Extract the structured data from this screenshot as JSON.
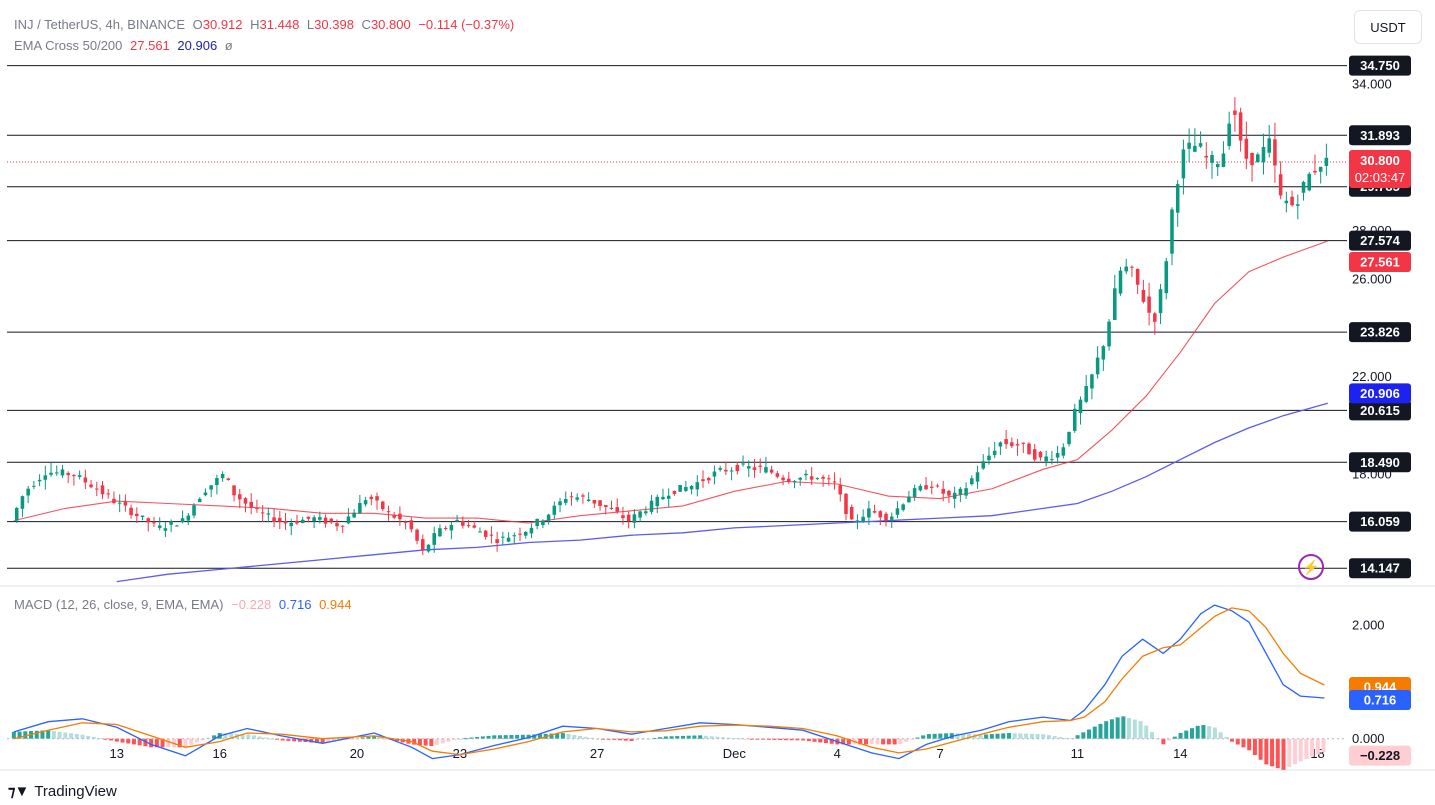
{
  "header": {
    "symbol": "INJ / TetherUS, 4h, BINANCE",
    "o_label": "O",
    "o": "30.912",
    "h_label": "H",
    "h": "31.448",
    "l_label": "L",
    "l": "30.398",
    "c_label": "C",
    "c": "30.800",
    "change": "−0.114 (−0.37%)",
    "ema_label": "EMA Cross 50/200",
    "ema50": "27.561",
    "ema200": "20.906",
    "ema_icon": "ø"
  },
  "macd_header": {
    "label": "MACD (12, 26, close, 9, EMA, EMA)",
    "hist": "−0.228",
    "macd": "0.716",
    "signal": "0.944"
  },
  "unit_button": "USDT",
  "brand": "TradingView",
  "icons": {
    "brand": "tradingview-logo-icon",
    "alert": "lightning-icon"
  },
  "colors": {
    "up": "#089981",
    "down": "#f23645",
    "ema50": "#f23645",
    "ema200": "#5b5bf5",
    "macd": "#2962ff",
    "signal": "#f57c00",
    "level": "#131722"
  },
  "chart_data": [
    {
      "type": "candlestick",
      "title": "INJ / TetherUS, 4h, BINANCE",
      "x_ticks": [
        {
          "day": 13,
          "label": "13"
        },
        {
          "day": 16,
          "label": "16"
        },
        {
          "day": 20,
          "label": "20"
        },
        {
          "day": 23,
          "label": "23"
        },
        {
          "day": 27,
          "label": "27"
        },
        {
          "day": 31,
          "label": "Dec"
        },
        {
          "day": 34,
          "label": "4"
        },
        {
          "day": 37,
          "label": "7"
        },
        {
          "day": 41,
          "label": "11"
        },
        {
          "day": 44,
          "label": "14"
        },
        {
          "day": 48,
          "label": "18"
        }
      ],
      "y_ticks": [
        {
          "v": 34.0,
          "label": "34.000"
        },
        {
          "v": 28.0,
          "label": "28.000"
        },
        {
          "v": 26.0,
          "label": "26.000"
        },
        {
          "v": 22.0,
          "label": "22.000"
        },
        {
          "v": 18.0,
          "label": "18.000"
        }
      ],
      "ylim": [
        13.5,
        35.8
      ],
      "horizontal_levels": [
        {
          "v": 34.75,
          "label": "34.750"
        },
        {
          "v": 31.893,
          "label": "31.893"
        },
        {
          "v": 29.785,
          "label": "29.785"
        },
        {
          "v": 27.574,
          "label": "27.574"
        },
        {
          "v": 23.826,
          "label": "23.826"
        },
        {
          "v": 20.615,
          "label": "20.615"
        },
        {
          "v": 18.49,
          "label": "18.490"
        },
        {
          "v": 16.059,
          "label": "16.059"
        },
        {
          "v": 14.147,
          "label": "14.147"
        }
      ],
      "last_price": {
        "v": 30.8,
        "label": "30.800",
        "countdown": "02:03:47"
      },
      "ema50_last": {
        "v": 27.561,
        "label": "27.561"
      },
      "ema200_last": {
        "v": 20.906,
        "label": "20.906"
      },
      "price_path": [
        [
          10.0,
          16.1
        ],
        [
          10.4,
          17.3
        ],
        [
          11.0,
          18.1
        ],
        [
          11.8,
          18.0
        ],
        [
          12.4,
          17.5
        ],
        [
          13.0,
          16.9
        ],
        [
          13.8,
          16.2
        ],
        [
          14.3,
          15.8
        ],
        [
          15.0,
          16.1
        ],
        [
          15.6,
          17.3
        ],
        [
          16.2,
          18.0
        ],
        [
          16.5,
          17.2
        ],
        [
          17.2,
          16.4
        ],
        [
          18.0,
          16.0
        ],
        [
          18.8,
          16.2
        ],
        [
          19.6,
          15.9
        ],
        [
          20.4,
          17.1
        ],
        [
          21.0,
          16.4
        ],
        [
          21.6,
          15.9
        ],
        [
          22.0,
          14.8
        ],
        [
          22.4,
          15.6
        ],
        [
          23.0,
          16.1
        ],
        [
          23.6,
          15.7
        ],
        [
          24.2,
          15.3
        ],
        [
          25.0,
          15.7
        ],
        [
          25.6,
          16.3
        ],
        [
          26.2,
          17.1
        ],
        [
          26.8,
          17.0
        ],
        [
          27.4,
          16.6
        ],
        [
          28.0,
          16.1
        ],
        [
          28.6,
          16.7
        ],
        [
          29.2,
          17.3
        ],
        [
          29.8,
          17.5
        ],
        [
          30.6,
          18.1
        ],
        [
          31.2,
          18.3
        ],
        [
          32.0,
          18.2
        ],
        [
          32.6,
          17.8
        ],
        [
          33.4,
          17.9
        ],
        [
          34.0,
          17.6
        ],
        [
          34.5,
          16.0
        ],
        [
          35.0,
          16.5
        ],
        [
          35.6,
          16.2
        ],
        [
          36.2,
          17.2
        ],
        [
          36.8,
          17.6
        ],
        [
          37.4,
          17.0
        ],
        [
          37.8,
          17.4
        ],
        [
          38.2,
          18.2
        ],
        [
          38.8,
          19.3
        ],
        [
          39.4,
          19.2
        ],
        [
          40.0,
          18.6
        ],
        [
          40.6,
          18.9
        ],
        [
          41.0,
          20.5
        ],
        [
          41.4,
          21.6
        ],
        [
          41.9,
          23.6
        ],
        [
          42.3,
          26.3
        ],
        [
          42.6,
          26.5
        ],
        [
          43.0,
          25.2
        ],
        [
          43.3,
          24.2
        ],
        [
          43.6,
          26.0
        ],
        [
          43.9,
          29.5
        ],
        [
          44.2,
          31.3
        ],
        [
          44.6,
          31.5
        ],
        [
          44.9,
          30.8
        ],
        [
          45.3,
          30.9
        ],
        [
          45.6,
          33.4
        ],
        [
          45.9,
          31.0
        ],
        [
          46.3,
          30.9
        ],
        [
          46.7,
          31.6
        ],
        [
          47.0,
          29.3
        ],
        [
          47.4,
          29.0
        ],
        [
          47.8,
          30.2
        ],
        [
          48.2,
          30.8
        ]
      ],
      "ema50_path": [
        [
          10.0,
          16.1
        ],
        [
          11.5,
          16.6
        ],
        [
          13.0,
          16.9
        ],
        [
          14.5,
          16.8
        ],
        [
          16.0,
          16.7
        ],
        [
          17.5,
          16.6
        ],
        [
          19.0,
          16.4
        ],
        [
          20.5,
          16.4
        ],
        [
          22.0,
          16.2
        ],
        [
          23.5,
          16.2
        ],
        [
          25.0,
          16.0
        ],
        [
          26.5,
          16.3
        ],
        [
          28.0,
          16.5
        ],
        [
          29.5,
          16.7
        ],
        [
          31.0,
          17.3
        ],
        [
          32.5,
          17.7
        ],
        [
          34.0,
          17.6
        ],
        [
          35.5,
          17.1
        ],
        [
          37.0,
          17.0
        ],
        [
          38.5,
          17.4
        ],
        [
          40.0,
          18.2
        ],
        [
          41.0,
          18.6
        ],
        [
          42.0,
          19.8
        ],
        [
          43.0,
          21.2
        ],
        [
          44.0,
          23.0
        ],
        [
          45.0,
          25.0
        ],
        [
          46.0,
          26.3
        ],
        [
          47.0,
          26.9
        ],
        [
          48.3,
          27.561
        ]
      ],
      "ema200_path": [
        [
          13.0,
          13.6
        ],
        [
          14.5,
          13.9
        ],
        [
          16.0,
          14.1
        ],
        [
          17.5,
          14.3
        ],
        [
          19.0,
          14.5
        ],
        [
          20.5,
          14.7
        ],
        [
          22.0,
          14.9
        ],
        [
          23.5,
          15.0
        ],
        [
          25.0,
          15.2
        ],
        [
          26.5,
          15.3
        ],
        [
          28.0,
          15.5
        ],
        [
          29.5,
          15.6
        ],
        [
          31.0,
          15.8
        ],
        [
          32.5,
          15.9
        ],
        [
          34.0,
          16.0
        ],
        [
          35.5,
          16.1
        ],
        [
          37.0,
          16.2
        ],
        [
          38.5,
          16.3
        ],
        [
          40.0,
          16.6
        ],
        [
          41.0,
          16.8
        ],
        [
          42.0,
          17.3
        ],
        [
          43.0,
          17.9
        ],
        [
          44.0,
          18.6
        ],
        [
          45.0,
          19.3
        ],
        [
          46.0,
          19.9
        ],
        [
          47.0,
          20.4
        ],
        [
          48.3,
          20.906
        ]
      ]
    },
    {
      "type": "macd",
      "title": "MACD (12, 26, close, 9, EMA, EMA)",
      "y_ticks": [
        {
          "v": 2.0,
          "label": "2.000"
        },
        {
          "v": 0.0,
          "label": "0.000"
        }
      ],
      "ylim": [
        -0.55,
        2.65
      ],
      "macd_last": {
        "v": 0.716,
        "label": "0.716"
      },
      "signal_last": {
        "v": 0.944,
        "label": "0.944"
      },
      "hist_last": {
        "v": -0.228,
        "label": "−0.228"
      },
      "macd_path": [
        [
          10.0,
          0.12
        ],
        [
          11.0,
          0.3
        ],
        [
          12.0,
          0.35
        ],
        [
          13.0,
          0.2
        ],
        [
          14.0,
          -0.1
        ],
        [
          15.0,
          -0.3
        ],
        [
          16.0,
          0.05
        ],
        [
          16.8,
          0.18
        ],
        [
          17.8,
          0.05
        ],
        [
          19.0,
          -0.08
        ],
        [
          20.5,
          0.1
        ],
        [
          21.6,
          -0.15
        ],
        [
          22.2,
          -0.35
        ],
        [
          23.0,
          -0.28
        ],
        [
          24.0,
          -0.12
        ],
        [
          25.0,
          0.02
        ],
        [
          26.0,
          0.22
        ],
        [
          27.0,
          0.18
        ],
        [
          28.0,
          0.08
        ],
        [
          29.0,
          0.18
        ],
        [
          30.0,
          0.28
        ],
        [
          31.0,
          0.25
        ],
        [
          32.0,
          0.2
        ],
        [
          33.0,
          0.15
        ],
        [
          34.0,
          -0.05
        ],
        [
          35.0,
          -0.25
        ],
        [
          35.8,
          -0.35
        ],
        [
          36.6,
          -0.1
        ],
        [
          37.4,
          0.05
        ],
        [
          38.2,
          0.15
        ],
        [
          39.0,
          0.3
        ],
        [
          40.0,
          0.38
        ],
        [
          40.8,
          0.32
        ],
        [
          41.2,
          0.5
        ],
        [
          41.8,
          0.95
        ],
        [
          42.3,
          1.45
        ],
        [
          42.9,
          1.75
        ],
        [
          43.5,
          1.5
        ],
        [
          44.0,
          1.75
        ],
        [
          44.6,
          2.2
        ],
        [
          45.0,
          2.35
        ],
        [
          45.5,
          2.25
        ],
        [
          46.0,
          2.05
        ],
        [
          46.5,
          1.5
        ],
        [
          47.0,
          0.95
        ],
        [
          47.5,
          0.75
        ],
        [
          48.2,
          0.716
        ]
      ],
      "signal_path": [
        [
          10.0,
          0.0
        ],
        [
          11.0,
          0.15
        ],
        [
          12.0,
          0.28
        ],
        [
          13.0,
          0.25
        ],
        [
          14.0,
          0.05
        ],
        [
          15.0,
          -0.15
        ],
        [
          16.0,
          -0.05
        ],
        [
          16.8,
          0.1
        ],
        [
          17.8,
          0.08
        ],
        [
          19.0,
          0.0
        ],
        [
          20.5,
          0.05
        ],
        [
          21.6,
          -0.05
        ],
        [
          22.2,
          -0.22
        ],
        [
          23.0,
          -0.28
        ],
        [
          24.0,
          -0.18
        ],
        [
          25.0,
          -0.05
        ],
        [
          26.0,
          0.12
        ],
        [
          27.0,
          0.18
        ],
        [
          28.0,
          0.12
        ],
        [
          29.0,
          0.14
        ],
        [
          30.0,
          0.22
        ],
        [
          31.0,
          0.24
        ],
        [
          32.0,
          0.22
        ],
        [
          33.0,
          0.18
        ],
        [
          34.0,
          0.05
        ],
        [
          35.0,
          -0.15
        ],
        [
          35.8,
          -0.25
        ],
        [
          36.6,
          -0.18
        ],
        [
          37.4,
          -0.05
        ],
        [
          38.2,
          0.08
        ],
        [
          39.0,
          0.2
        ],
        [
          40.0,
          0.3
        ],
        [
          40.8,
          0.32
        ],
        [
          41.2,
          0.38
        ],
        [
          41.8,
          0.65
        ],
        [
          42.3,
          1.05
        ],
        [
          42.9,
          1.45
        ],
        [
          43.5,
          1.6
        ],
        [
          44.0,
          1.65
        ],
        [
          44.6,
          1.95
        ],
        [
          45.0,
          2.15
        ],
        [
          45.5,
          2.3
        ],
        [
          46.0,
          2.25
        ],
        [
          46.5,
          1.95
        ],
        [
          47.0,
          1.5
        ],
        [
          47.5,
          1.15
        ],
        [
          48.2,
          0.944
        ]
      ]
    }
  ]
}
